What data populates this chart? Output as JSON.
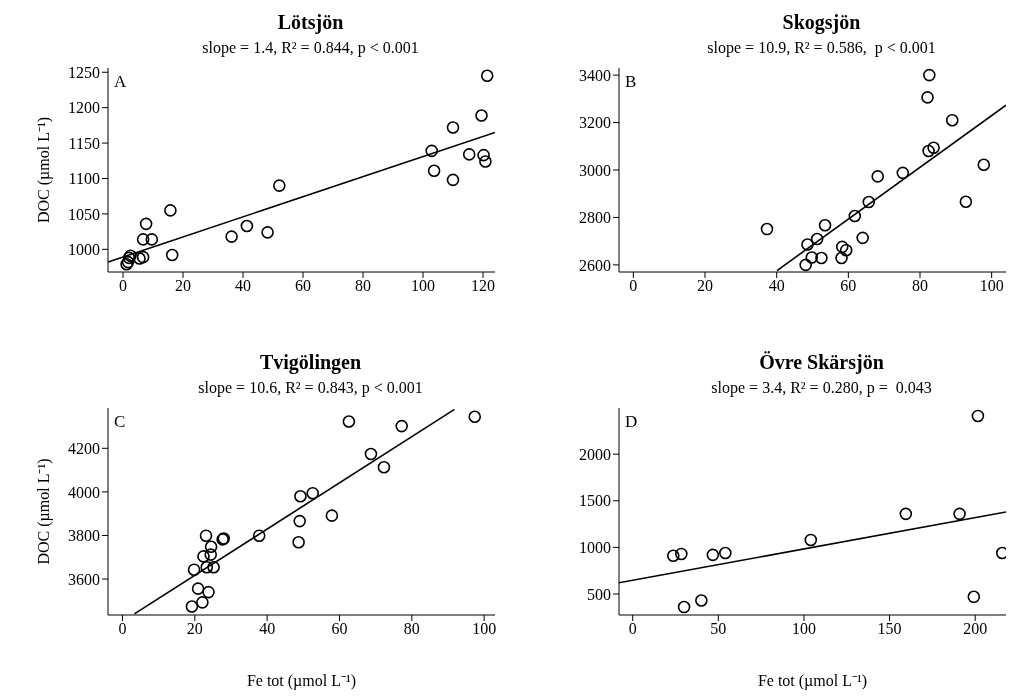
{
  "chart_data": [
    {
      "type": "scatter",
      "title": "Lötsjön",
      "subtitle": "slope = 1.4, R² = 0.844, p < 0.001",
      "ylabel": "DOC (µmol L⁻¹)",
      "annotations": [
        "A"
      ],
      "xlim": [
        -5,
        124
      ],
      "ylim": [
        968,
        1256
      ],
      "xticks": [
        0,
        20,
        40,
        60,
        80,
        100,
        120
      ],
      "yticks": [
        1000,
        1050,
        1100,
        1150,
        1200,
        1250
      ],
      "grid": false,
      "legend": false,
      "series": [
        {
          "color": "#000000",
          "marker": "circle",
          "x": [
            121.4,
            119.5,
            110,
            102.9,
            115.4,
            120.2,
            120.8,
            103.7,
            110,
            52.1,
            15.8,
            7.7,
            6.7,
            9.6,
            36.2,
            41.3,
            48.2,
            16.4,
            6.7,
            5.5,
            2.5,
            2,
            1.2,
            1.7
          ],
          "values": [
            1245,
            1189,
            1172,
            1139,
            1134,
            1133,
            1124,
            1111,
            1098,
            1090,
            1055,
            1036,
            1014,
            1014,
            1018,
            1033,
            1024,
            992,
            989,
            987,
            991,
            988,
            979,
            982
          ]
        },
        {
          "type": "line",
          "color": "#000000",
          "marker": "none",
          "x": [
            -5,
            124
          ],
          "values": [
            982,
            1165
          ]
        }
      ]
    },
    {
      "type": "scatter",
      "title": "Skogsjön",
      "subtitle": "slope = 10.9, R² = 0.586,  p < 0.001",
      "annotations": [
        "B"
      ],
      "xlim": [
        -4,
        104
      ],
      "ylim": [
        2570,
        3430
      ],
      "xticks": [
        0,
        20,
        40,
        60,
        80,
        100
      ],
      "yticks": [
        2600,
        2800,
        3000,
        3200,
        3400
      ],
      "grid": false,
      "legend": false,
      "series": [
        {
          "color": "#000000",
          "marker": "circle",
          "x": [
            82.6,
            82.1,
            89,
            82.4,
            83.8,
            97.8,
            75.2,
            68.2,
            92.8,
            65.7,
            61.8,
            53.5,
            37.3,
            51.3,
            64,
            48.6,
            58.3,
            59.4,
            49.8,
            52.5,
            58.1,
            48.1
          ],
          "values": [
            3400,
            3306,
            3210,
            3080,
            3094,
            3022,
            2988,
            2973,
            2866,
            2865,
            2806,
            2767,
            2751,
            2709,
            2714,
            2686,
            2676,
            2662,
            2631,
            2629,
            2629,
            2600
          ]
        },
        {
          "type": "line",
          "color": "#000000",
          "marker": "none",
          "x": [
            40.1,
            104
          ],
          "values": [
            2576,
            3273
          ]
        }
      ]
    },
    {
      "type": "scatter",
      "title": "Tvigölingen",
      "subtitle": "slope = 10.6, R² = 0.843, p < 0.001",
      "ylabel": "DOC (µmol L⁻¹)",
      "xlabel": "Fe tot (µmol L⁻¹)",
      "annotations": [
        "C"
      ],
      "xlim": [
        -4,
        103
      ],
      "ylim": [
        3435,
        4385
      ],
      "xticks": [
        0,
        20,
        40,
        60,
        80,
        100
      ],
      "yticks": [
        3600,
        3800,
        4000,
        4200
      ],
      "grid": false,
      "legend": false,
      "series": [
        {
          "color": "#000000",
          "marker": "circle",
          "x": [
            97.4,
            62.6,
            77.2,
            68.7,
            72.3,
            49.2,
            52.6,
            49,
            57.9,
            48.7,
            37.8,
            23.1,
            27.7,
            28,
            24.5,
            24.4,
            22.4,
            19.8,
            23.3,
            25.2,
            20.9,
            23.8,
            22.1,
            19.2
          ],
          "values": [
            4345,
            4323,
            4302,
            4174,
            4113,
            3980,
            3994,
            3866,
            3891,
            3769,
            3799,
            3799,
            3782,
            3786,
            3748,
            3712,
            3704,
            3643,
            3654,
            3654,
            3556,
            3540,
            3493,
            3474
          ]
        },
        {
          "type": "line",
          "color": "#000000",
          "marker": "none",
          "x": [
            3.3,
            91.8
          ],
          "values": [
            3440,
            4379
          ]
        }
      ]
    },
    {
      "type": "scatter",
      "title": "Övre Skärsjön",
      "subtitle": "slope = 3.4, R² = 0.280, p =  0.043",
      "xlabel": "Fe tot (µmol L⁻¹)",
      "annotations": [
        "D"
      ],
      "xlim": [
        -8,
        218
      ],
      "ylim": [
        275,
        2495
      ],
      "xticks": [
        0,
        50,
        100,
        150,
        200
      ],
      "yticks": [
        500,
        1000,
        1500,
        2000
      ],
      "grid": false,
      "legend": false,
      "series": [
        {
          "color": "#000000",
          "marker": "circle",
          "x": [
            201.6,
            159.5,
            190.9,
            104,
            215.8,
            28.4,
            23.7,
            46.8,
            54.1,
            40.1,
            30,
            199.2
          ],
          "values": [
            2410,
            1360,
            1360,
            1080,
            940,
            930,
            910,
            920,
            940,
            430,
            360,
            470
          ]
        },
        {
          "type": "line",
          "color": "#000000",
          "marker": "none",
          "x": [
            -8,
            218
          ],
          "values": [
            620,
            1380
          ]
        }
      ]
    }
  ]
}
